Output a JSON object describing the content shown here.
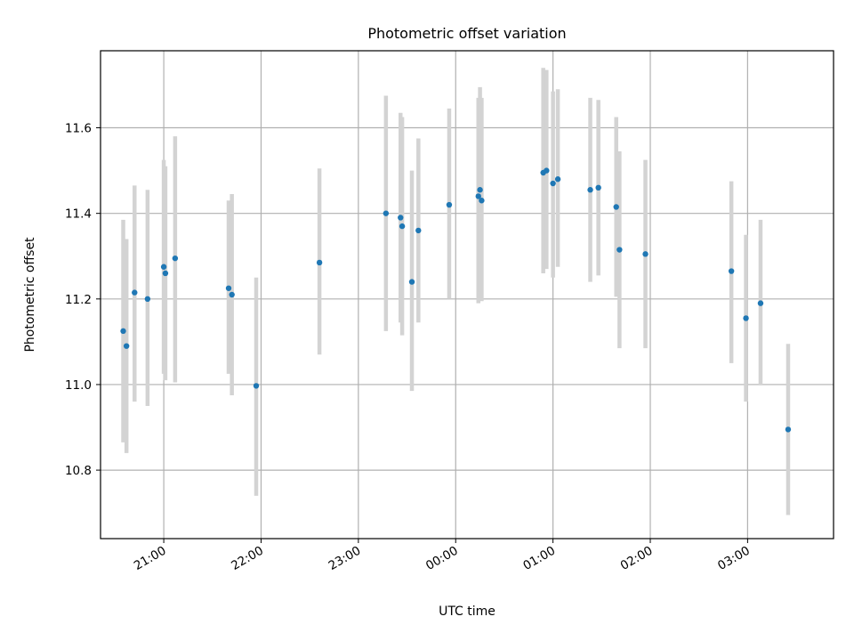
{
  "chart_data": {
    "type": "scatter",
    "title": "Photometric offset variation",
    "xlabel": "UTC time",
    "ylabel": "Photometric offset",
    "grid": true,
    "legend": "none",
    "colors": {
      "point": "#1f77b4",
      "errorbar": "#d3d3d3",
      "grid": "#b0b0b0"
    },
    "x_tick_labels": [
      "21:00",
      "22:00",
      "23:00",
      "00:00",
      "01:00",
      "02:00",
      "03:00"
    ],
    "x_tick_times": [
      "21:00",
      "22:00",
      "23:00",
      "00:00",
      "01:00",
      "02:00",
      "03:00"
    ],
    "y_tick_labels": [
      "10.8",
      "11.0",
      "11.2",
      "11.4",
      "11.6"
    ],
    "y_tick_values": [
      10.8,
      11.0,
      11.2,
      11.4,
      11.6
    ],
    "xlim": [
      "20:21",
      "03:53"
    ],
    "ylim": [
      10.64,
      11.78
    ],
    "series": [
      {
        "points": [
          {
            "x": "20:35",
            "y": 11.125,
            "ylo": 10.865,
            "yhi": 11.385
          },
          {
            "x": "20:37",
            "y": 11.09,
            "ylo": 10.84,
            "yhi": 11.34
          },
          {
            "x": "20:42",
            "y": 11.215,
            "ylo": 10.96,
            "yhi": 11.465
          },
          {
            "x": "20:50",
            "y": 11.2,
            "ylo": 10.95,
            "yhi": 11.455
          },
          {
            "x": "21:00",
            "y": 11.275,
            "ylo": 11.025,
            "yhi": 11.525
          },
          {
            "x": "21:01",
            "y": 11.26,
            "ylo": 11.01,
            "yhi": 11.51
          },
          {
            "x": "21:07",
            "y": 11.295,
            "ylo": 11.005,
            "yhi": 11.58
          },
          {
            "x": "21:40",
            "y": 11.225,
            "ylo": 11.025,
            "yhi": 11.43
          },
          {
            "x": "21:42",
            "y": 11.21,
            "ylo": 10.975,
            "yhi": 11.445
          },
          {
            "x": "21:57",
            "y": 10.997,
            "ylo": 10.74,
            "yhi": 11.25
          },
          {
            "x": "22:36",
            "y": 11.285,
            "ylo": 11.07,
            "yhi": 11.505
          },
          {
            "x": "23:17",
            "y": 11.4,
            "ylo": 11.125,
            "yhi": 11.675
          },
          {
            "x": "23:26",
            "y": 11.39,
            "ylo": 11.145,
            "yhi": 11.635
          },
          {
            "x": "23:27",
            "y": 11.37,
            "ylo": 11.115,
            "yhi": 11.625
          },
          {
            "x": "23:33",
            "y": 11.24,
            "ylo": 10.985,
            "yhi": 11.5
          },
          {
            "x": "23:37",
            "y": 11.36,
            "ylo": 11.145,
            "yhi": 11.575
          },
          {
            "x": "23:56",
            "y": 11.42,
            "ylo": 11.2,
            "yhi": 11.645
          },
          {
            "x": "00:14",
            "y": 11.44,
            "ylo": 11.19,
            "yhi": 11.67
          },
          {
            "x": "00:15",
            "y": 11.455,
            "ylo": 11.215,
            "yhi": 11.695
          },
          {
            "x": "00:16",
            "y": 11.43,
            "ylo": 11.195,
            "yhi": 11.67
          },
          {
            "x": "00:54",
            "y": 11.495,
            "ylo": 11.26,
            "yhi": 11.74
          },
          {
            "x": "00:56",
            "y": 11.5,
            "ylo": 11.27,
            "yhi": 11.735
          },
          {
            "x": "01:00",
            "y": 11.47,
            "ylo": 11.25,
            "yhi": 11.685
          },
          {
            "x": "01:03",
            "y": 11.48,
            "ylo": 11.275,
            "yhi": 11.69
          },
          {
            "x": "01:23",
            "y": 11.455,
            "ylo": 11.24,
            "yhi": 11.67
          },
          {
            "x": "01:28",
            "y": 11.46,
            "ylo": 11.255,
            "yhi": 11.665
          },
          {
            "x": "01:39",
            "y": 11.415,
            "ylo": 11.205,
            "yhi": 11.625
          },
          {
            "x": "01:41",
            "y": 11.315,
            "ylo": 11.085,
            "yhi": 11.545
          },
          {
            "x": "01:57",
            "y": 11.305,
            "ylo": 11.085,
            "yhi": 11.525
          },
          {
            "x": "02:50",
            "y": 11.265,
            "ylo": 11.05,
            "yhi": 11.475
          },
          {
            "x": "02:59",
            "y": 11.155,
            "ylo": 10.96,
            "yhi": 11.35
          },
          {
            "x": "03:08",
            "y": 11.19,
            "ylo": 11.0,
            "yhi": 11.385
          },
          {
            "x": "03:25",
            "y": 10.895,
            "ylo": 10.695,
            "yhi": 11.095
          }
        ]
      }
    ]
  }
}
